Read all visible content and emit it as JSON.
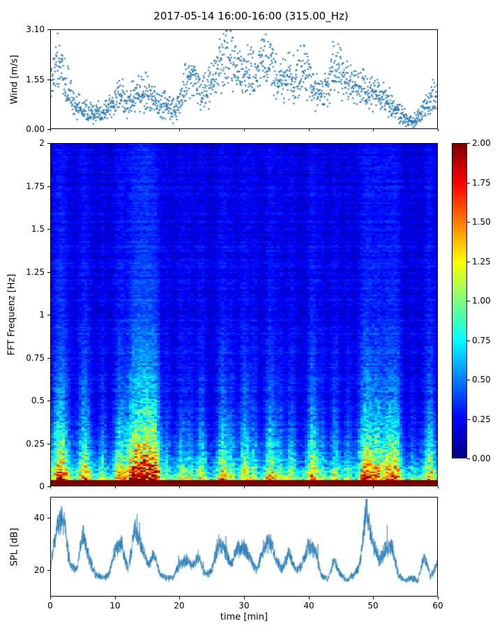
{
  "figure": {
    "title": "2017-05-14 16:00-16:00 (315.00_Hz)",
    "background": "#ffffff",
    "accent_color": "#1f77b4"
  },
  "chart_data": [
    {
      "id": "wind",
      "type": "scatter",
      "ylabel": "Wind [m/s]",
      "ylim": [
        0,
        3.1
      ],
      "xlim": [
        0,
        60
      ],
      "yticks": [
        {
          "v": 0.0,
          "label": "0.00"
        },
        {
          "v": 1.55,
          "label": "1.55"
        },
        {
          "v": 3.1,
          "label": "3.10"
        }
      ],
      "point_color": "#1f77b4",
      "points_per_minute": 26,
      "spread_base": 0.18,
      "spread_scale": 0.45,
      "x_minutes": [
        0,
        1,
        2,
        3,
        4,
        5,
        6,
        7,
        8,
        9,
        10,
        11,
        12,
        13,
        14,
        15,
        16,
        17,
        18,
        19,
        20,
        21,
        22,
        23,
        24,
        25,
        26,
        27,
        28,
        29,
        30,
        31,
        32,
        33,
        34,
        35,
        36,
        37,
        38,
        39,
        40,
        41,
        42,
        43,
        44,
        45,
        46,
        47,
        48,
        49,
        50,
        51,
        52,
        53,
        54,
        55,
        56,
        57,
        58,
        59,
        60
      ],
      "mean_values": [
        1.7,
        2.1,
        1.8,
        1.1,
        0.7,
        0.6,
        0.5,
        0.5,
        0.45,
        0.6,
        0.9,
        1.1,
        0.8,
        1.0,
        1.2,
        1.1,
        0.9,
        0.7,
        0.8,
        0.6,
        0.8,
        1.5,
        1.7,
        1.1,
        1.2,
        1.4,
        1.8,
        2.3,
        2.2,
        1.8,
        1.6,
        1.8,
        1.6,
        2.1,
        2.0,
        1.6,
        1.4,
        1.7,
        1.5,
        1.8,
        1.7,
        1.2,
        1.0,
        1.3,
        1.9,
        1.8,
        1.4,
        1.5,
        1.3,
        1.1,
        1.2,
        1.0,
        0.9,
        0.7,
        0.5,
        0.3,
        0.2,
        0.3,
        0.7,
        1.0,
        1.1
      ]
    },
    {
      "id": "spectrogram",
      "type": "heatmap",
      "ylabel": "FFT Frequenz [Hz]",
      "ylim": [
        0,
        2
      ],
      "xlim": [
        0,
        60
      ],
      "clim": [
        0,
        2
      ],
      "colormap": "jet",
      "base_level": 0.05,
      "yticks": [
        {
          "v": 0,
          "label": "0"
        },
        {
          "v": 0.25,
          "label": "0.25"
        },
        {
          "v": 0.5,
          "label": "0.5"
        },
        {
          "v": 0.75,
          "label": "0.75"
        },
        {
          "v": 1,
          "label": "1"
        },
        {
          "v": 1.25,
          "label": "1.25"
        },
        {
          "v": 1.5,
          "label": "1.5"
        },
        {
          "v": 1.75,
          "label": "1.75"
        },
        {
          "v": 2,
          "label": "2"
        }
      ],
      "colorbar_ticks": [
        {
          "v": 0.0,
          "label": "0.00"
        },
        {
          "v": 0.25,
          "label": "0.25"
        },
        {
          "v": 0.5,
          "label": "0.50"
        },
        {
          "v": 0.75,
          "label": "0.75"
        },
        {
          "v": 1.0,
          "label": "1.00"
        },
        {
          "v": 1.25,
          "label": "1.25"
        },
        {
          "v": 1.5,
          "label": "1.50"
        },
        {
          "v": 1.75,
          "label": "1.75"
        },
        {
          "v": 2.0,
          "label": "2.00"
        }
      ],
      "events": [
        {
          "t": 1.5,
          "w": 0.9,
          "a": 1.3
        },
        {
          "t": 5.2,
          "w": 0.7,
          "a": 1.0
        },
        {
          "t": 8.0,
          "w": 0.4,
          "a": 0.5
        },
        {
          "t": 10.6,
          "w": 0.6,
          "a": 0.9
        },
        {
          "t": 13.0,
          "w": 1.0,
          "a": 1.5
        },
        {
          "t": 15.0,
          "w": 0.9,
          "a": 1.5
        },
        {
          "t": 16.3,
          "w": 0.5,
          "a": 0.9
        },
        {
          "t": 18.0,
          "w": 0.4,
          "a": 0.4
        },
        {
          "t": 20.2,
          "w": 0.5,
          "a": 0.55
        },
        {
          "t": 21.5,
          "w": 0.4,
          "a": 0.5
        },
        {
          "t": 23.3,
          "w": 0.5,
          "a": 0.7
        },
        {
          "t": 26.6,
          "w": 0.6,
          "a": 0.9
        },
        {
          "t": 28.0,
          "w": 0.4,
          "a": 0.5
        },
        {
          "t": 30.0,
          "w": 0.6,
          "a": 0.85
        },
        {
          "t": 31.5,
          "w": 0.4,
          "a": 0.5
        },
        {
          "t": 34.0,
          "w": 0.6,
          "a": 0.9
        },
        {
          "t": 35.5,
          "w": 0.4,
          "a": 0.5
        },
        {
          "t": 37.2,
          "w": 0.5,
          "a": 0.6
        },
        {
          "t": 40.5,
          "w": 0.6,
          "a": 1.0
        },
        {
          "t": 42.0,
          "w": 0.4,
          "a": 0.4
        },
        {
          "t": 44.0,
          "w": 0.5,
          "a": 0.6
        },
        {
          "t": 46.0,
          "w": 0.4,
          "a": 0.4
        },
        {
          "t": 48.8,
          "w": 0.8,
          "a": 1.3
        },
        {
          "t": 50.5,
          "w": 0.6,
          "a": 0.9
        },
        {
          "t": 52.3,
          "w": 0.8,
          "a": 1.1
        },
        {
          "t": 53.6,
          "w": 0.5,
          "a": 0.8
        },
        {
          "t": 56.0,
          "w": 0.3,
          "a": 0.3
        },
        {
          "t": 58.6,
          "w": 0.6,
          "a": 0.9
        }
      ]
    },
    {
      "id": "spl",
      "type": "line",
      "ylabel": "SPL [dB]",
      "xlabel": "time [min]",
      "ylim": [
        10,
        48
      ],
      "xlim": [
        0,
        60
      ],
      "yticks": [
        {
          "v": 20,
          "label": "20"
        },
        {
          "v": 40,
          "label": "40"
        }
      ],
      "xticks": [
        {
          "v": 0,
          "label": "0"
        },
        {
          "v": 10,
          "label": "10"
        },
        {
          "v": 20,
          "label": "20"
        },
        {
          "v": 30,
          "label": "30"
        },
        {
          "v": 40,
          "label": "40"
        },
        {
          "v": 50,
          "label": "50"
        },
        {
          "v": 60,
          "label": "60"
        }
      ],
      "line_color": "#1f77b4",
      "x_minutes": [
        0,
        1,
        2,
        3,
        4,
        5,
        6,
        7,
        8,
        9,
        10,
        11,
        12,
        13,
        14,
        15,
        16,
        17,
        18,
        19,
        20,
        21,
        22,
        23,
        24,
        25,
        26,
        27,
        28,
        29,
        30,
        31,
        32,
        33,
        34,
        35,
        36,
        37,
        38,
        39,
        40,
        41,
        42,
        43,
        44,
        45,
        46,
        47,
        48,
        49,
        50,
        51,
        52,
        53,
        54,
        55,
        56,
        57,
        58,
        59,
        60
      ],
      "values": [
        22,
        38,
        40,
        22,
        20,
        34,
        24,
        18,
        17,
        18,
        28,
        30,
        20,
        36,
        30,
        22,
        26,
        18,
        17,
        17,
        22,
        24,
        22,
        25,
        18,
        20,
        30,
        28,
        22,
        28,
        29,
        24,
        20,
        28,
        31,
        24,
        20,
        27,
        20,
        22,
        29,
        28,
        18,
        16,
        24,
        18,
        16,
        18,
        22,
        44,
        30,
        24,
        28,
        29,
        18,
        16,
        17,
        16,
        25,
        18,
        22
      ]
    }
  ]
}
